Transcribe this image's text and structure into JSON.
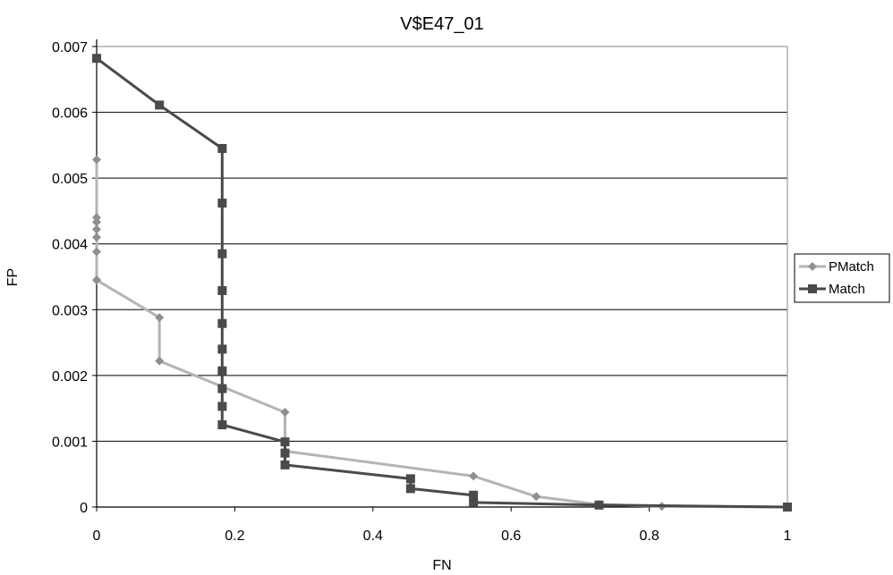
{
  "chart_data": {
    "type": "line",
    "title": "V$E47_01",
    "xlabel": "FN",
    "ylabel": "FP",
    "xlim": [
      0,
      1
    ],
    "ylim": [
      0,
      0.007
    ],
    "x_ticks": [
      "0",
      "0.2",
      "0.4",
      "0.6",
      "0.8",
      "1"
    ],
    "y_ticks": [
      "0",
      "0.001",
      "0.002",
      "0.003",
      "0.004",
      "0.005",
      "0.006",
      "0.007"
    ],
    "grid": "horizontal",
    "legend_position": "right",
    "series": [
      {
        "name": "PMatch",
        "color": "#b4b4b4",
        "marker": "diamond",
        "x": [
          0,
          0,
          0,
          0,
          0,
          0,
          0,
          0,
          0.0909,
          0.0909,
          0.2727,
          0.2727,
          0.5455,
          0.6364,
          0.7273,
          0.8182,
          1.0
        ],
        "y": [
          0.00528,
          0.0044,
          0.00433,
          0.00422,
          0.0041,
          0.00388,
          0.00345,
          0.00345,
          0.00288,
          0.00222,
          0.00144,
          0.00085,
          0.00047,
          0.00016,
          4e-05,
          1e-05,
          0.0
        ]
      },
      {
        "name": "Match",
        "color": "#4a4a4a",
        "marker": "square",
        "x": [
          0,
          0.0909,
          0.1818,
          0.1818,
          0.1818,
          0.1818,
          0.1818,
          0.1818,
          0.1818,
          0.1818,
          0.1818,
          0.1818,
          0.2727,
          0.2727,
          0.2727,
          0.4545,
          0.4545,
          0.5455,
          0.5455,
          0.7273,
          1.0
        ],
        "y": [
          0.00682,
          0.00611,
          0.00545,
          0.00462,
          0.00385,
          0.00329,
          0.00279,
          0.0024,
          0.00207,
          0.0018,
          0.00153,
          0.00125,
          0.00099,
          0.00082,
          0.00064,
          0.00043,
          0.00028,
          0.00018,
          7e-05,
          3e-05,
          0.0
        ]
      }
    ]
  }
}
